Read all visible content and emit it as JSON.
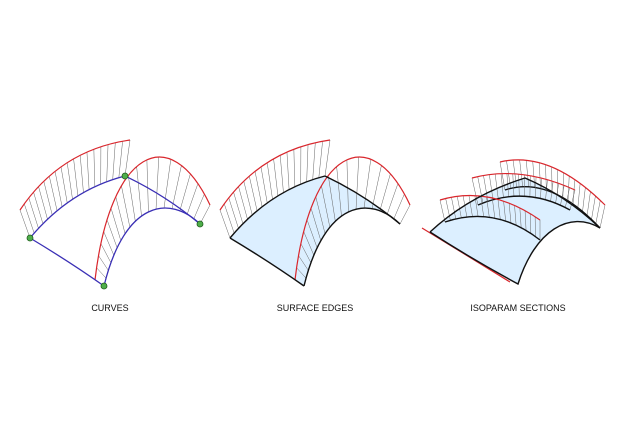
{
  "panels": [
    {
      "label": "CURVES"
    },
    {
      "label": "SURFACE EDGES"
    },
    {
      "label": "ISOPARAM SECTIONS"
    }
  ]
}
